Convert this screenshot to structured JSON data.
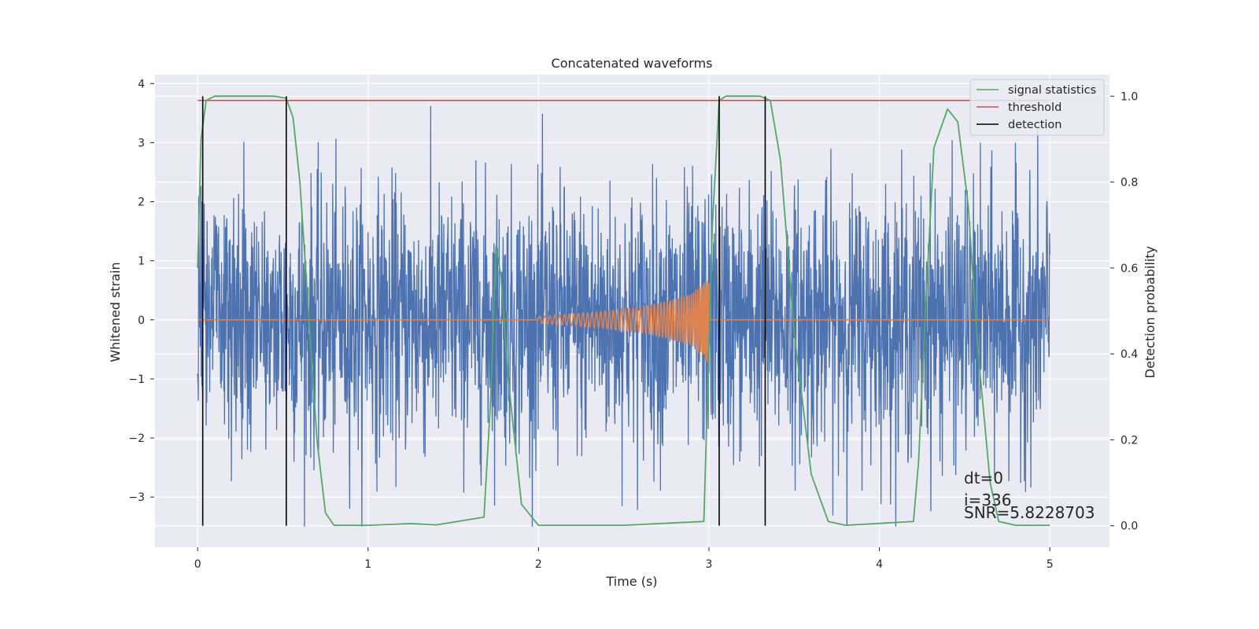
{
  "chart_data": {
    "type": "line",
    "title": "Concatenated waveforms",
    "xlabel": "Time (s)",
    "ylabel": "Whitened strain",
    "y2label": "Detection probability",
    "xlim": [
      -0.25,
      5.35
    ],
    "ylim": [
      -3.85,
      4.15
    ],
    "y2lim": [
      -0.05,
      1.05
    ],
    "xticks": [
      0,
      1,
      2,
      3,
      4,
      5
    ],
    "xtick_labels": [
      "0",
      "1",
      "2",
      "3",
      "4",
      "5"
    ],
    "yticks": [
      -3,
      -2,
      -1,
      0,
      1,
      2,
      3,
      4
    ],
    "ytick_labels": [
      "−3",
      "−2",
      "−1",
      "0",
      "1",
      "2",
      "3",
      "4"
    ],
    "y2ticks": [
      0.0,
      0.2,
      0.4,
      0.6,
      0.8,
      1.0
    ],
    "y2tick_labels": [
      "0.0",
      "0.2",
      "0.4",
      "0.6",
      "0.8",
      "1.0"
    ],
    "grid": true,
    "legend_position": "top-right",
    "colors": {
      "strain": "#4c72b0",
      "injection": "#dd8452",
      "signal_statistics": "#55a868",
      "threshold": "#c44e52",
      "detection": "#000000",
      "plot_bg": "#eaeaf2",
      "grid": "#ffffff"
    },
    "series": [
      {
        "kind": "whitened_strain",
        "axis": "left",
        "x_range": [
          0,
          5
        ],
        "noise_envelope": {
          "typical_abs": 1.3,
          "peak_max": 3.8,
          "peak_min": -3.5
        }
      },
      {
        "kind": "injected_waveform",
        "axis": "left",
        "x": [
          0,
          2.0,
          2.2,
          2.4,
          2.6,
          2.8,
          2.9,
          2.95,
          3.0,
          3.01,
          5
        ],
        "amplitude": [
          0,
          0.06,
          0.1,
          0.15,
          0.22,
          0.35,
          0.45,
          0.6,
          0.75,
          0,
          0
        ]
      },
      {
        "name": "signal statistics",
        "axis": "right",
        "x": [
          0,
          0.02,
          0.05,
          0.1,
          0.45,
          0.52,
          0.56,
          0.6,
          0.65,
          0.7,
          0.75,
          0.8,
          1.0,
          1.25,
          1.4,
          1.68,
          1.72,
          1.75,
          1.78,
          1.82,
          1.9,
          2.0,
          2.5,
          2.97,
          3.02,
          3.06,
          3.1,
          3.3,
          3.36,
          3.42,
          3.5,
          3.6,
          3.7,
          3.8,
          4.2,
          4.23,
          4.27,
          4.32,
          4.4,
          4.46,
          4.52,
          4.58,
          4.65,
          4.7,
          4.8,
          5.0
        ],
        "y": [
          0.6,
          0.9,
          0.99,
          1.0,
          1.0,
          0.995,
          0.95,
          0.8,
          0.5,
          0.2,
          0.03,
          0.001,
          0.001,
          0.005,
          0.002,
          0.02,
          0.3,
          0.65,
          0.58,
          0.35,
          0.05,
          0.001,
          0.001,
          0.01,
          0.7,
          0.99,
          1.0,
          1.0,
          0.99,
          0.85,
          0.45,
          0.12,
          0.01,
          0.001,
          0.01,
          0.15,
          0.5,
          0.88,
          0.97,
          0.94,
          0.75,
          0.4,
          0.1,
          0.01,
          0.001,
          0.001
        ]
      },
      {
        "name": "threshold",
        "axis": "right",
        "x": [
          0,
          5
        ],
        "y": [
          0.99,
          0.99
        ]
      },
      {
        "name": "detection",
        "axis": "right",
        "x": [
          0.03,
          0.52,
          3.06,
          3.33
        ],
        "y_range": [
          0,
          1
        ]
      }
    ],
    "annotations": [
      "dt=0",
      "i=336",
      "SNR=5.8228703"
    ]
  }
}
